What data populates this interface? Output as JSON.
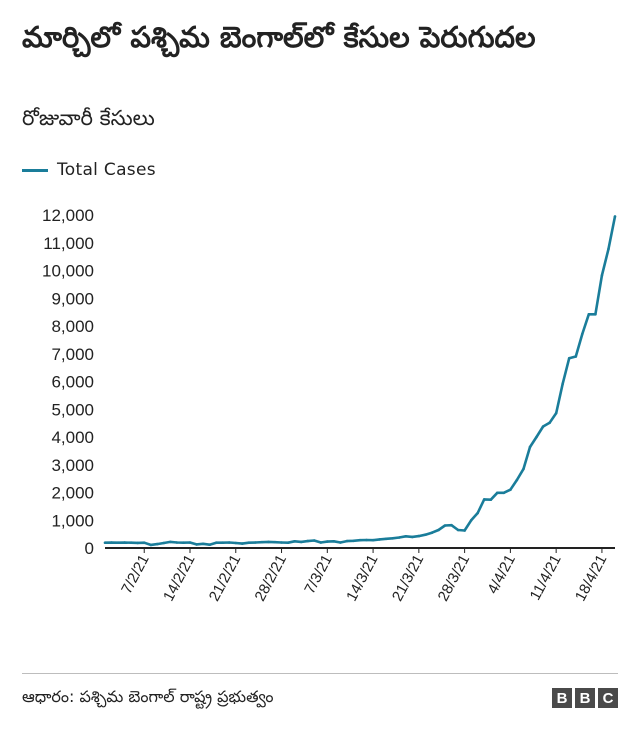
{
  "title": "మార్చిలో పశ్చిమ బెంగాల్‌లో కేసుల పెరుగుదల",
  "subtitle": "రోజువారీ కేసులు",
  "source": "ఆధారం: పశ్చిమ బెంగాల్ రాష్ట్ర ప్రభుత్వం",
  "logo": [
    "B",
    "B",
    "C"
  ],
  "colors": {
    "line": "#1a7d9a",
    "axis": "#222222",
    "text": "#222222"
  },
  "chart_data": {
    "type": "line",
    "title": "మార్చిలో పశ్చిమ బెంగాల్‌లో కేసుల పెరుగుదల",
    "subtitle": "రోజువారీ కేసులు",
    "xlabel": "",
    "ylabel": "",
    "ylim": [
      0,
      12000
    ],
    "yticks": [
      0,
      1000,
      2000,
      3000,
      4000,
      5000,
      6000,
      7000,
      8000,
      9000,
      10000,
      11000,
      12000
    ],
    "ytick_labels": [
      "0",
      "1,000",
      "2,000",
      "3,000",
      "4,000",
      "5,000",
      "6,000",
      "7,000",
      "8,000",
      "9,000",
      "10,000",
      "11,000",
      "12,000"
    ],
    "grid": false,
    "legend": "top-left",
    "x_first_day": 0,
    "x_last_day": 78,
    "xticks": [
      {
        "day": 6,
        "label": "7/2/21"
      },
      {
        "day": 13,
        "label": "14/2/21"
      },
      {
        "day": 20,
        "label": "21/2/21"
      },
      {
        "day": 27,
        "label": "28/2/21"
      },
      {
        "day": 34,
        "label": "7/3/21"
      },
      {
        "day": 41,
        "label": "14/3/21"
      },
      {
        "day": 48,
        "label": "21/3/21"
      },
      {
        "day": 55,
        "label": "28/3/21"
      },
      {
        "day": 62,
        "label": "4/4/21"
      },
      {
        "day": 69,
        "label": "11/4/21"
      },
      {
        "day": 76,
        "label": "18/4/21"
      }
    ],
    "series": [
      {
        "name": "Total  Cases",
        "values": [
          190,
          195,
          190,
          195,
          190,
          185,
          190,
          110,
          140,
          180,
          220,
          200,
          190,
          200,
          130,
          150,
          120,
          190,
          190,
          200,
          180,
          160,
          190,
          200,
          210,
          220,
          210,
          200,
          190,
          240,
          220,
          250,
          270,
          200,
          230,
          240,
          200,
          250,
          260,
          280,
          290,
          280,
          310,
          330,
          350,
          380,
          420,
          400,
          430,
          480,
          550,
          650,
          810,
          820,
          650,
          630,
          1000,
          1260,
          1750,
          1740,
          1990,
          1990,
          2100,
          2450,
          2850,
          3640,
          4000,
          4380,
          4510,
          4860,
          5920,
          6840,
          6900,
          7710,
          8420,
          8420,
          9820,
          10780,
          11950
        ]
      }
    ]
  }
}
